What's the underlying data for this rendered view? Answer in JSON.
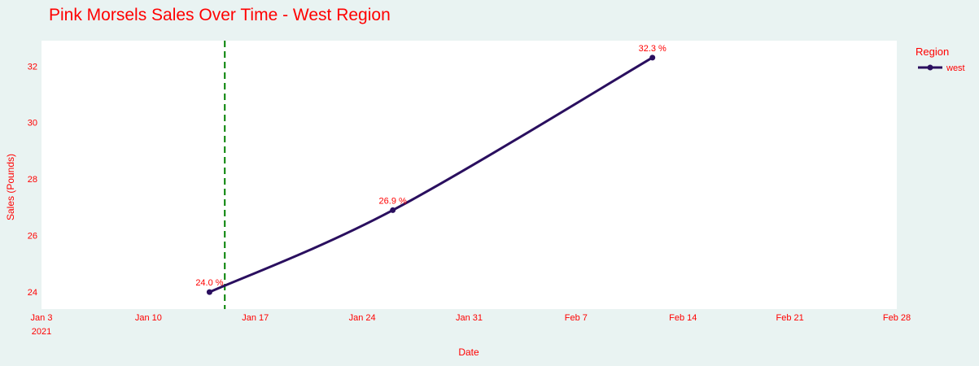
{
  "chart_data": {
    "type": "line",
    "title": "Pink Morsels Sales Over Time - West  Region",
    "xlabel": "Date",
    "ylabel": "Sales (Pounds)",
    "x_range": [
      "2021-01-03",
      "2021-02-28"
    ],
    "ylim": [
      23.4,
      32.9
    ],
    "x_ticks": [
      {
        "date": "2021-01-03",
        "label": "Jan 3",
        "sublabel": "2021"
      },
      {
        "date": "2021-01-10",
        "label": "Jan 10",
        "sublabel": ""
      },
      {
        "date": "2021-01-17",
        "label": "Jan 17",
        "sublabel": ""
      },
      {
        "date": "2021-01-24",
        "label": "Jan 24",
        "sublabel": ""
      },
      {
        "date": "2021-01-31",
        "label": "Jan 31",
        "sublabel": ""
      },
      {
        "date": "2021-02-07",
        "label": "Feb 7",
        "sublabel": ""
      },
      {
        "date": "2021-02-14",
        "label": "Feb 14",
        "sublabel": ""
      },
      {
        "date": "2021-02-21",
        "label": "Feb 21",
        "sublabel": ""
      },
      {
        "date": "2021-02-28",
        "label": "Feb 28",
        "sublabel": ""
      }
    ],
    "y_ticks": [
      24,
      26,
      28,
      30,
      32
    ],
    "series": [
      {
        "name": "west",
        "color": "#2a0f5f",
        "points": [
          {
            "x": "2021-01-14",
            "y": 24.0,
            "label": "24.0 %"
          },
          {
            "x": "2021-01-26",
            "y": 26.9,
            "label": "26.9 %"
          },
          {
            "x": "2021-02-12",
            "y": 32.3,
            "label": "32.3 %"
          }
        ]
      }
    ],
    "annotations": [
      {
        "type": "vline",
        "x": "2021-01-15",
        "color": "#008000",
        "dash": "dashed"
      }
    ],
    "legend": {
      "title": "Region",
      "placement": "top-right"
    },
    "grid": false,
    "text_color": "#ff0000",
    "plot_bg": "#ffffff",
    "paper_bg": "#e9f3f2"
  }
}
